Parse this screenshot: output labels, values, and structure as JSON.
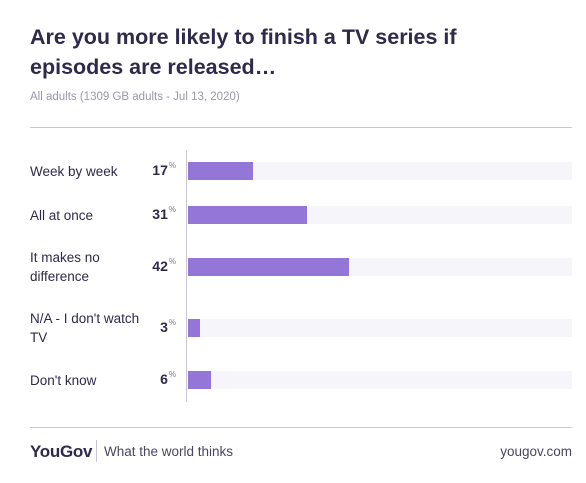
{
  "title": "Are you more likely to finish a TV series if episodes are released…",
  "subtitle": "All adults (1309 GB adults - Jul 13, 2020)",
  "footer": {
    "logo": "YouGov",
    "tagline": "What the world thinks",
    "url": "yougov.com"
  },
  "chart_data": {
    "type": "bar",
    "orientation": "horizontal",
    "categories": [
      "Week by week",
      "All at once",
      "It makes no difference",
      "N/A - I don't watch TV",
      "Don't know"
    ],
    "values": [
      17,
      31,
      42,
      3,
      6
    ],
    "value_suffix": "%",
    "xlim": [
      0,
      100
    ],
    "bar_color": "#9476d8",
    "grid": false,
    "legend": "none"
  }
}
